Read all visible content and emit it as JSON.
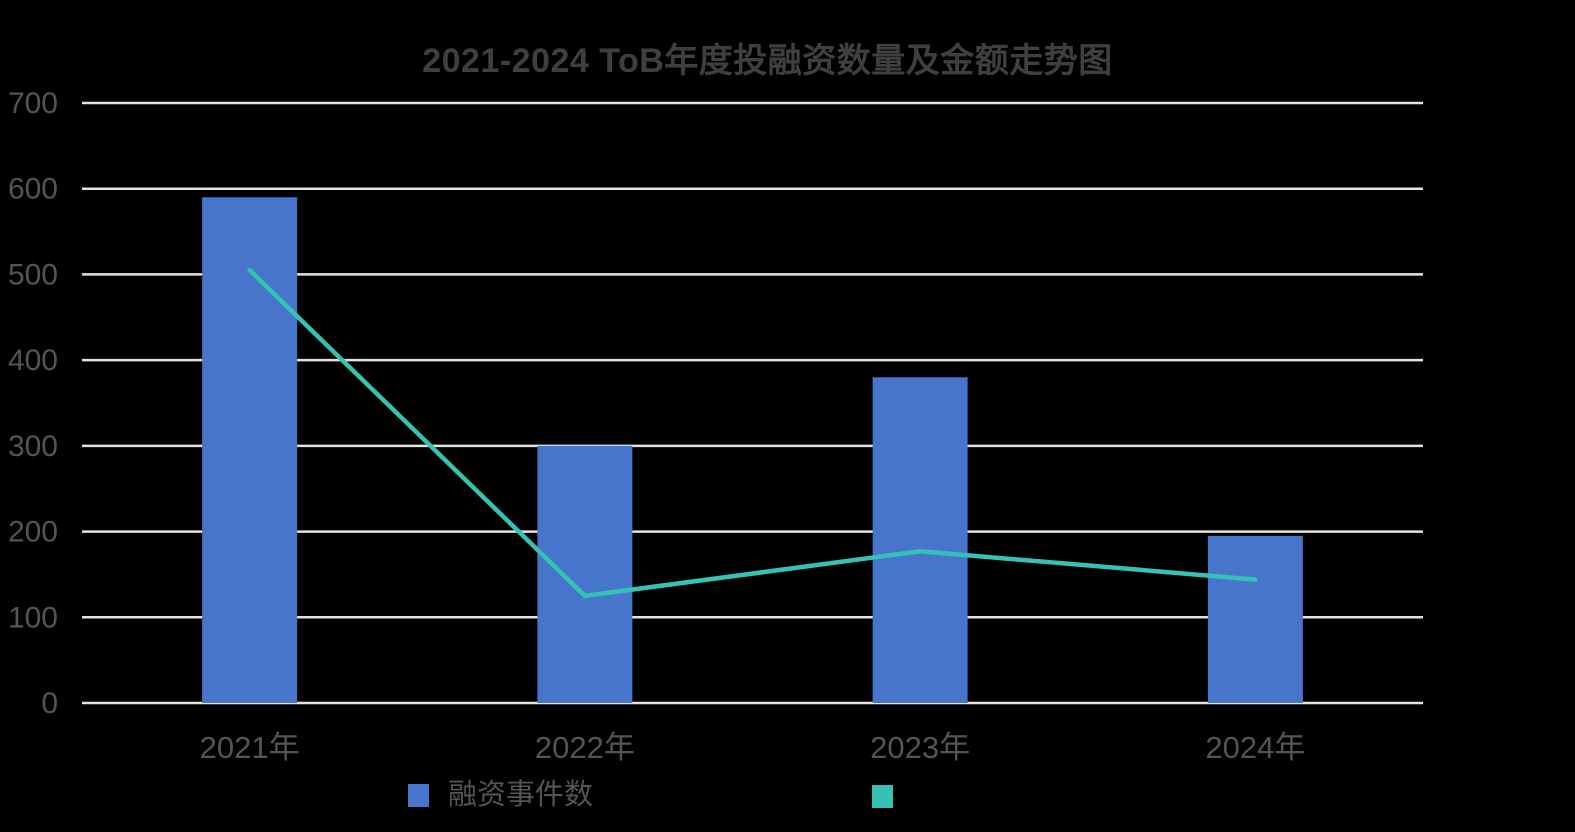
{
  "title": "2021-2024 ToB年度投融资数量及金额走势图",
  "colors": {
    "background": "#000000",
    "bar": "#4775CB",
    "line": "#35C2B4",
    "grid": "#E5E3E0",
    "axis_text": "#545454",
    "title_text": "#3F3F3F"
  },
  "legend": {
    "items": [
      {
        "label": "融资事件数",
        "color": "#4775CB"
      },
      {
        "label": "",
        "color": "#35C2B4"
      }
    ]
  },
  "chart_data": {
    "type": "bar",
    "subtype": "combo-bar-line",
    "title": "2021-2024 ToB年度投融资数量及金额走势图",
    "categories": [
      "2021年",
      "2022年",
      "2023年",
      "2024年"
    ],
    "series": [
      {
        "name": "融资事件数",
        "type": "bar",
        "color": "#4775CB",
        "values": [
          590,
          300,
          380,
          195
        ]
      },
      {
        "name": "",
        "type": "line",
        "color": "#35C2B4",
        "values": [
          505,
          125,
          177,
          144
        ]
      }
    ],
    "xlabel": "",
    "ylabel": "",
    "ylim": [
      0,
      700
    ],
    "ytick_step": 100,
    "grid": true,
    "legend_position": "bottom"
  }
}
